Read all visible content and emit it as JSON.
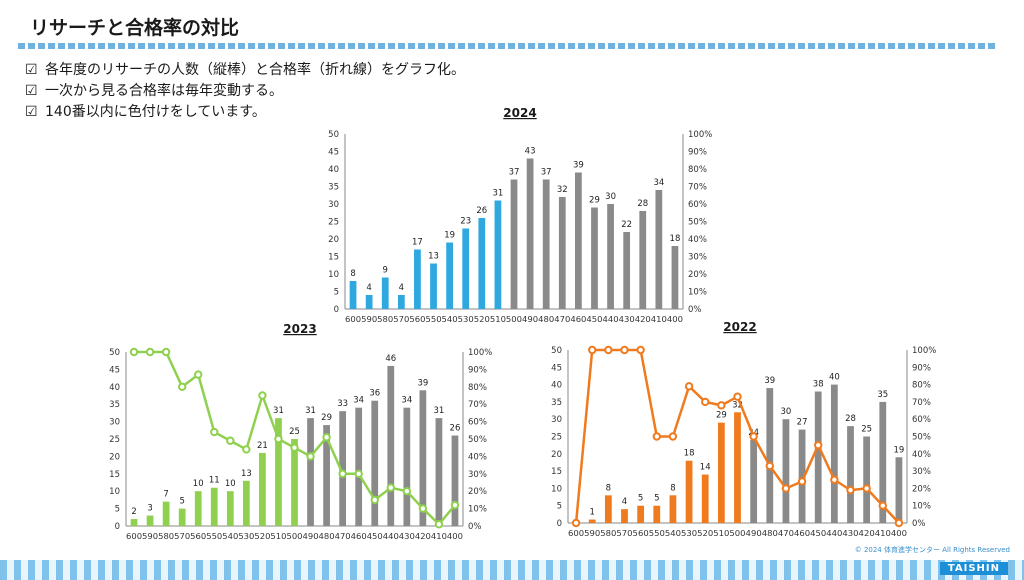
{
  "page": {
    "title": "リサーチと合格率の対比",
    "bullets": [
      {
        "icon": "checkbox-icon",
        "mark": "☑",
        "text": "各年度のリサーチの人数（縦棒）と合格率（折れ線）をグラフ化。"
      },
      {
        "icon": "checkbox-icon",
        "mark": "☑",
        "text": "一次から見る合格率は毎年変動する。"
      },
      {
        "icon": "checkbox-icon",
        "mark": "☑",
        "text": "140番以内に色付けをしています。"
      }
    ],
    "copyright": "© 2024 体育進学センター All Rights Reserved",
    "logo": "TAISHIN"
  },
  "chart_data": [
    {
      "type": "bar",
      "title": "2024",
      "categories": [
        "600",
        "590",
        "580",
        "570",
        "560",
        "550",
        "540",
        "530",
        "520",
        "510",
        "500",
        "490",
        "480",
        "470",
        "460",
        "450",
        "440",
        "430",
        "420",
        "410",
        "400"
      ],
      "series": [
        {
          "values": [
            8,
            4,
            9,
            4,
            17,
            13,
            19,
            23,
            26,
            31,
            37,
            43,
            37,
            32,
            39,
            29,
            30,
            22,
            28,
            34,
            18
          ]
        }
      ],
      "highlight_count": 10,
      "highlight_color": "#2fa8e0",
      "bar_color": "#8a8a8a",
      "ylim": [
        0,
        50
      ],
      "yticks": [
        0,
        5,
        10,
        15,
        20,
        25,
        30,
        35,
        40,
        45,
        50
      ],
      "y2lim": [
        0,
        100
      ],
      "y2ticks": [
        "0%",
        "10%",
        "20%",
        "30%",
        "40%",
        "50%",
        "60%",
        "70%",
        "80%",
        "90%",
        "100%"
      ],
      "grid": false
    },
    {
      "type": "bar",
      "title": "2023",
      "categories": [
        "600",
        "590",
        "580",
        "570",
        "560",
        "550",
        "540",
        "530",
        "520",
        "510",
        "500",
        "490",
        "480",
        "470",
        "460",
        "450",
        "440",
        "430",
        "420",
        "410",
        "400"
      ],
      "series": [
        {
          "values": [
            2,
            3,
            7,
            5,
            10,
            11,
            10,
            13,
            21,
            31,
            25,
            31,
            29,
            33,
            34,
            36,
            46,
            34,
            39,
            31,
            26
          ]
        },
        {
          "type": "line",
          "axis": "right",
          "values": [
            100,
            100,
            100,
            80,
            87,
            54,
            49,
            44,
            75,
            50,
            45,
            40,
            51,
            30,
            30,
            15,
            22,
            20,
            10,
            1,
            12
          ]
        }
      ],
      "highlight_count": 11,
      "highlight_color": "#8fd14f",
      "line_color": "#8fd14f",
      "bar_color": "#8a8a8a",
      "ylim": [
        0,
        50
      ],
      "yticks": [
        0,
        5,
        10,
        15,
        20,
        25,
        30,
        35,
        40,
        45,
        50
      ],
      "y2lim": [
        0,
        100
      ],
      "y2ticks": [
        "0%",
        "10%",
        "20%",
        "30%",
        "40%",
        "50%",
        "60%",
        "70%",
        "80%",
        "90%",
        "100%"
      ],
      "grid": false
    },
    {
      "type": "bar",
      "title": "2022",
      "categories": [
        "600",
        "590",
        "580",
        "570",
        "560",
        "550",
        "540",
        "530",
        "520",
        "510",
        "500",
        "490",
        "480",
        "470",
        "460",
        "450",
        "440",
        "430",
        "420",
        "410",
        "400"
      ],
      "series": [
        {
          "values": [
            0,
            1,
            8,
            4,
            5,
            5,
            8,
            18,
            14,
            29,
            32,
            24,
            39,
            30,
            27,
            38,
            40,
            28,
            25,
            35,
            19
          ]
        },
        {
          "type": "line",
          "axis": "right",
          "values": [
            0,
            100,
            100,
            100,
            100,
            50,
            50,
            79,
            70,
            68,
            73,
            50,
            33,
            20,
            24,
            45,
            25,
            19,
            20,
            10,
            0
          ]
        }
      ],
      "bar_labels": [
        "",
        "1",
        "8",
        "4",
        "5",
        "5",
        "8",
        "18",
        "14",
        "29",
        "32",
        "24",
        "39",
        "30",
        "27",
        "38",
        "40",
        "28",
        "25",
        "35",
        "19"
      ],
      "highlight_count": 11,
      "highlight_color": "#f07a1e",
      "line_color": "#f07a1e",
      "bar_color": "#8a8a8a",
      "ylim": [
        0,
        50
      ],
      "yticks": [
        0,
        5,
        10,
        15,
        20,
        25,
        30,
        35,
        40,
        45,
        50
      ],
      "y2lim": [
        0,
        100
      ],
      "y2ticks": [
        "0%",
        "10%",
        "20%",
        "30%",
        "40%",
        "50%",
        "60%",
        "70%",
        "80%",
        "90%",
        "100%"
      ],
      "grid": false
    }
  ]
}
